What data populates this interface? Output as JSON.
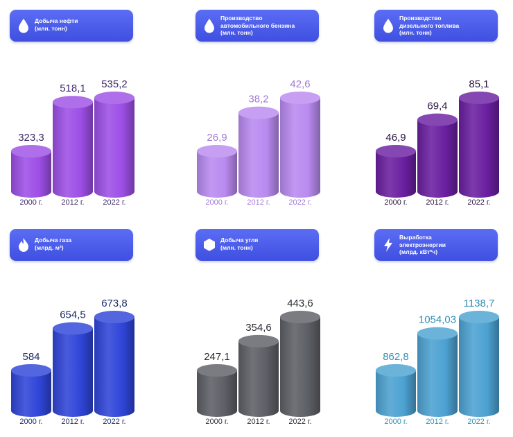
{
  "chart_data": [
    {
      "type": "bar",
      "title": "Добыча нефти",
      "unit": "(млн. тонн)",
      "icon": "drop-icon",
      "categories": [
        "2000 г.",
        "2012 г.",
        "2022 г."
      ],
      "values": [
        323.3,
        518.1,
        535.2
      ],
      "value_labels": [
        "323,3",
        "518,1",
        "535,2"
      ],
      "color": "#9d4fe6",
      "label_color": "#3e2a6b"
    },
    {
      "type": "bar",
      "title": "Производство\nавтомобильного бензина",
      "unit": "(млн. тонн)",
      "icon": "drop-icon",
      "categories": [
        "2000 г.",
        "2012 г.",
        "2022 г."
      ],
      "values": [
        26.9,
        38.2,
        42.6
      ],
      "value_labels": [
        "26,9",
        "38,2",
        "42,6"
      ],
      "color": "#b98af0",
      "label_color": "#a27ad6"
    },
    {
      "type": "bar",
      "title": "Производство\nдизельного топлива",
      "unit": "(млн. тонн)",
      "icon": "drop-icon",
      "categories": [
        "2000 г.",
        "2012 г.",
        "2022 г."
      ],
      "values": [
        46.9,
        69.4,
        85.1
      ],
      "value_labels": [
        "46,9",
        "69,4",
        "85,1"
      ],
      "color": "#6a1fa0",
      "label_color": "#2a1440"
    },
    {
      "type": "bar",
      "title": "Добыча газа",
      "unit": "(млрд. м³)",
      "icon": "flame-icon",
      "categories": [
        "2000 г.",
        "2012 г.",
        "2022 г."
      ],
      "values": [
        584,
        654.5,
        673.8
      ],
      "value_labels": [
        "584",
        "654,5",
        "673,8"
      ],
      "color": "#2f45d8",
      "label_color": "#1c2a66"
    },
    {
      "type": "bar",
      "title": "Добыча угля",
      "unit": "(млн. тонн)",
      "icon": "hexagon-icon",
      "categories": [
        "2000 г.",
        "2012 г.",
        "2022 г."
      ],
      "values": [
        247.1,
        354.6,
        443.6
      ],
      "value_labels": [
        "247,1",
        "354,6",
        "443,6"
      ],
      "color": "#5d5f66",
      "label_color": "#2b2d33"
    },
    {
      "type": "bar",
      "title": "Выработка\nэлектроэнергии",
      "unit": "(млрд. кВт*ч)",
      "icon": "lightning-icon",
      "categories": [
        "2000 г.",
        "2012 г.",
        "2022 г."
      ],
      "values": [
        862.8,
        1054.03,
        1138.7
      ],
      "value_labels": [
        "862,8",
        "1054,03",
        "1138,7"
      ],
      "color": "#4ca2d2",
      "label_color": "#2f8fb8"
    }
  ]
}
